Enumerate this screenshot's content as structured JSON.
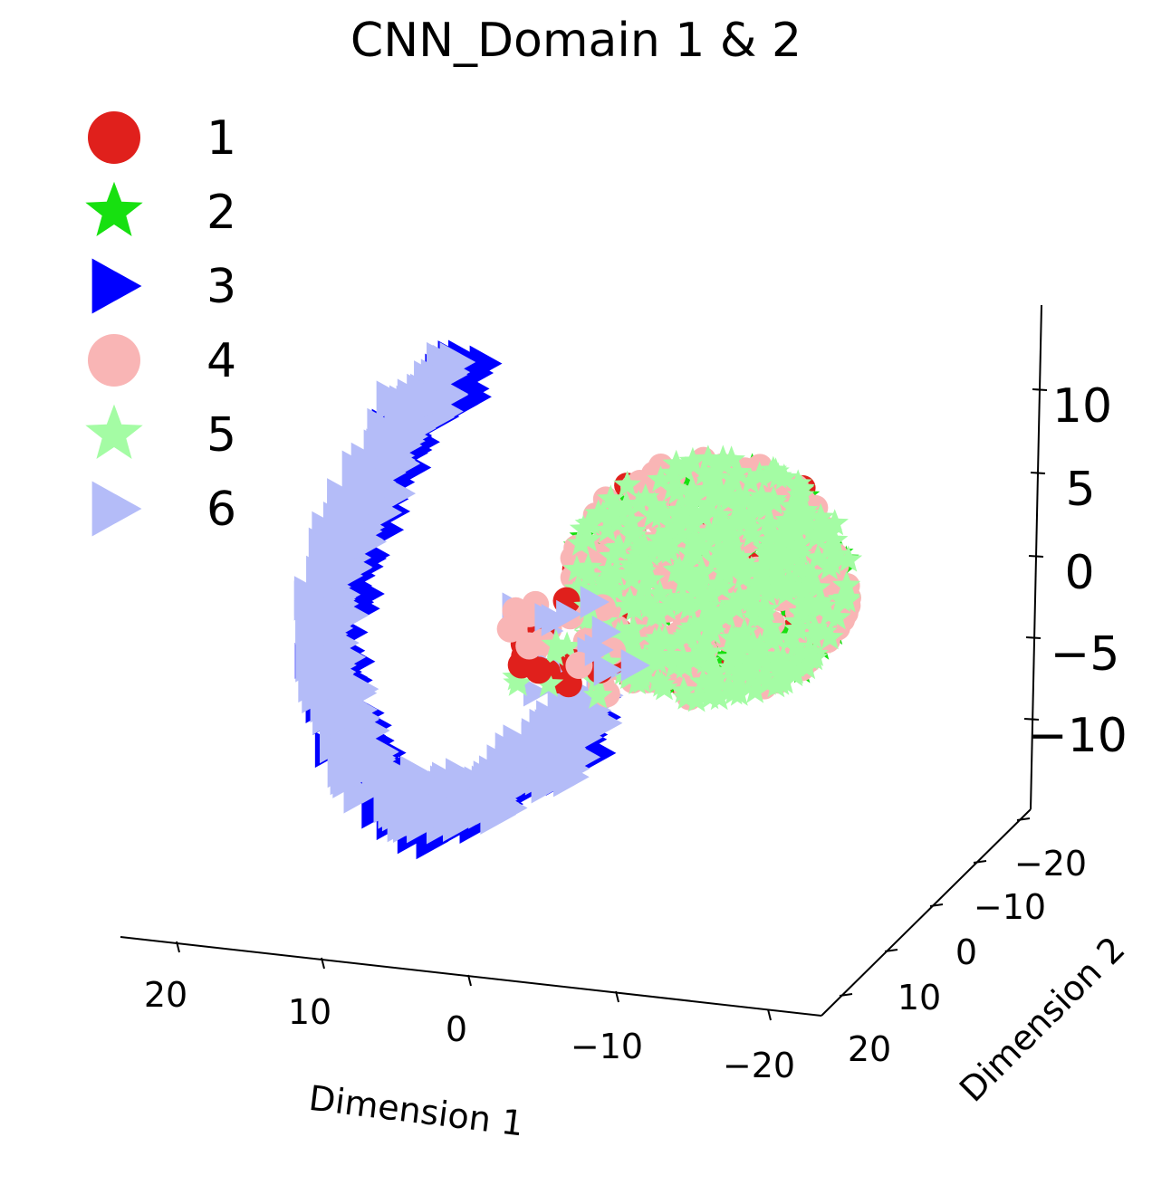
{
  "chart_data": {
    "type": "scatter",
    "projection": "3d",
    "title": "CNN_Domain 1 & 2",
    "xlabel": "Dimension 1",
    "ylabel": "Dimension 2",
    "zlabel": "",
    "x_ticks": [
      "20",
      "10",
      "0",
      "−10",
      "−20"
    ],
    "y_ticks": [
      "−20",
      "−10",
      "0",
      "10",
      "20"
    ],
    "z_ticks": [
      "10",
      "5",
      "0",
      "−5",
      "−10"
    ],
    "xlim": [
      25,
      -25
    ],
    "ylim": [
      -25,
      25
    ],
    "zlim": [
      -15,
      15
    ],
    "grid": false,
    "legend_position": "top-left",
    "series": [
      {
        "name": "1",
        "marker": "circle",
        "color": "#e0201c"
      },
      {
        "name": "2",
        "marker": "star",
        "color": "#17e010"
      },
      {
        "name": "3",
        "marker": "triangle-right",
        "color": "#0000ff"
      },
      {
        "name": "4",
        "marker": "circle",
        "color": "#f9b5b5"
      },
      {
        "name": "5",
        "marker": "star",
        "color": "#a4fca4"
      },
      {
        "name": "6",
        "marker": "triangle-right",
        "color": "#b4bcf8"
      }
    ],
    "clusters": [
      {
        "description_free_id": "blob",
        "series": [
          "1",
          "2",
          "4",
          "5"
        ],
        "approx_center": {
          "x": -8,
          "y": 0,
          "z": 2
        }
      },
      {
        "description_free_id": "arc",
        "series": [
          "3",
          "6"
        ],
        "approx_center": {
          "x": 12,
          "y": 5,
          "z": -3
        }
      }
    ]
  }
}
